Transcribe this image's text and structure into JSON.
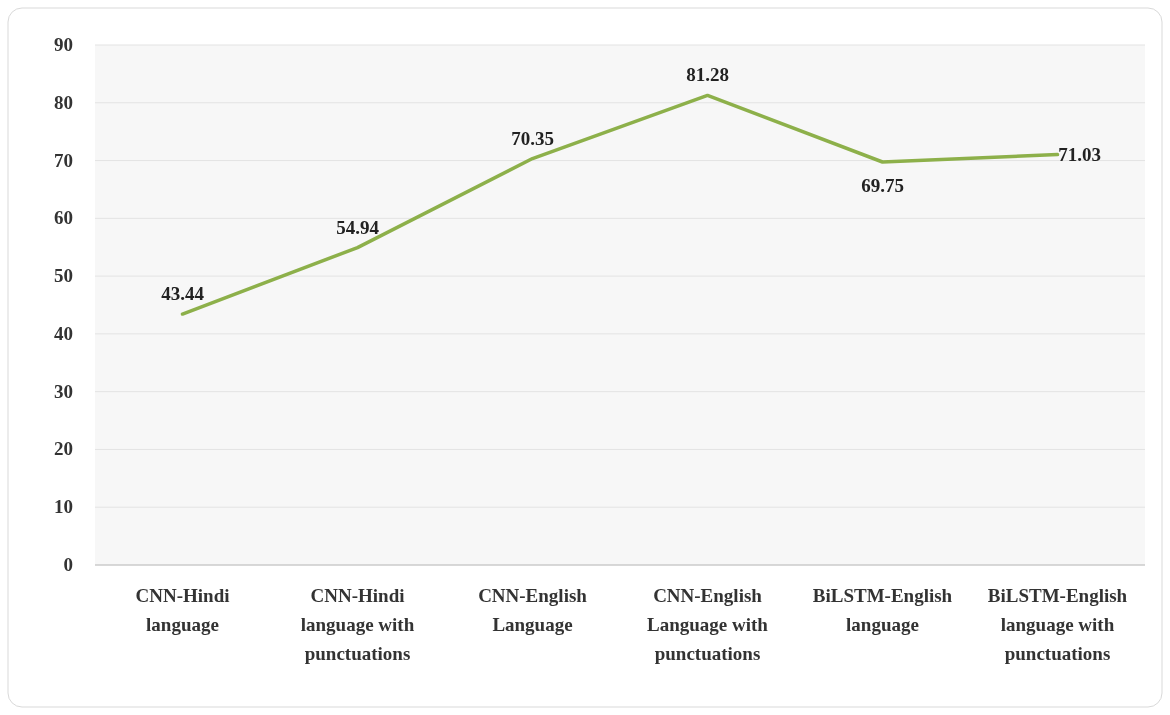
{
  "chart_data": {
    "type": "line",
    "categories": [
      "CNN-Hindi language",
      "CNN-Hindi language with punctuations",
      "CNN-English Language",
      "CNN-English Language with punctuations",
      "BiLSTM-English language",
      "BiLSTM-English language with punctuations"
    ],
    "series": [
      {
        "color": "#8db04a",
        "values": [
          43.44,
          54.94,
          70.35,
          81.28,
          69.75,
          71.03
        ]
      }
    ],
    "ylim": [
      0,
      90
    ],
    "yticks": [
      0,
      10,
      20,
      30,
      40,
      50,
      60,
      70,
      80,
      90
    ],
    "grid": "y",
    "data_labels": true,
    "marker": "none",
    "line_style": "solid"
  }
}
